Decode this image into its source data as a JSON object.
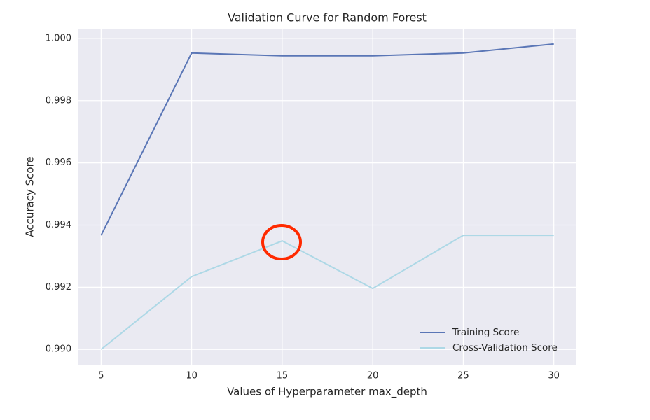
{
  "chart_data": {
    "type": "line",
    "title": "Validation Curve for Random Forest",
    "xlabel": "Values of Hyperparameter max_depth",
    "ylabel": "Accuracy Score",
    "x": [
      5,
      10,
      15,
      20,
      25,
      30
    ],
    "series": [
      {
        "name": "Training Score",
        "color": "#5a76b6",
        "values": [
          0.99367,
          0.99953,
          0.99944,
          0.99944,
          0.99953,
          0.99982
        ]
      },
      {
        "name": "Cross-Validation Score",
        "color": "#add8e6",
        "values": [
          0.99,
          0.99234,
          0.99349,
          0.99196,
          0.99367,
          0.99367
        ]
      }
    ],
    "xlim": [
      3.75,
      31.25
    ],
    "xticks": [
      5,
      10,
      15,
      20,
      25,
      30
    ],
    "ylim": [
      0.98951,
      1.00029
    ],
    "yticks": [
      {
        "value": 0.99,
        "label": "0.990"
      },
      0.992,
      0.994,
      0.996,
      0.998,
      {
        "value": 1,
        "label": "1.000"
      }
    ],
    "grid": true,
    "legend": "lower right"
  }
}
